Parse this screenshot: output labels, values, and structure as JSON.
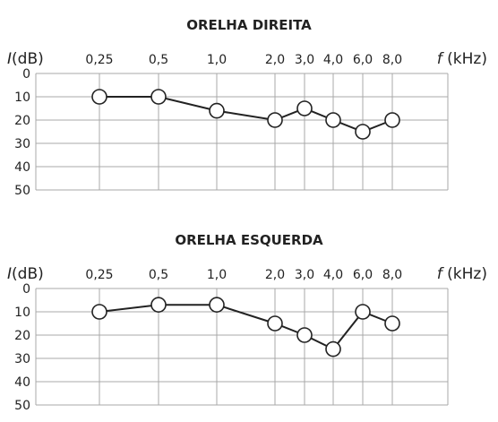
{
  "chart_data": [
    {
      "type": "line",
      "title": "ORELHA DIREITA",
      "ylabel": "I(dB)",
      "xlabel": "f (kHz)",
      "categories": [
        "0,25",
        "0,5",
        "1,0",
        "2,0",
        "3,0",
        "4,0",
        "6,0",
        "8,0"
      ],
      "x": [
        0.25,
        0.5,
        1.0,
        2.0,
        3.0,
        4.0,
        6.0,
        8.0
      ],
      "values": [
        10,
        10,
        16,
        20,
        15,
        20,
        25,
        20
      ],
      "yticks": [
        "0",
        "10",
        "20",
        "30",
        "40",
        "50"
      ],
      "ylim": [
        0,
        50
      ],
      "y_inverted": true,
      "grid": true
    },
    {
      "type": "line",
      "title": "ORELHA ESQUERDA",
      "ylabel": "I(dB)",
      "xlabel": "f (kHz)",
      "categories": [
        "0,25",
        "0,5",
        "1,0",
        "2,0",
        "3,0",
        "4,0",
        "6,0",
        "8,0"
      ],
      "x": [
        0.25,
        0.5,
        1.0,
        2.0,
        3.0,
        4.0,
        6.0,
        8.0
      ],
      "values": [
        10,
        7,
        7,
        15,
        20,
        26,
        10,
        15
      ],
      "yticks": [
        "0",
        "10",
        "20",
        "30",
        "40",
        "50"
      ],
      "ylim": [
        0,
        50
      ],
      "y_inverted": true,
      "grid": true
    }
  ]
}
